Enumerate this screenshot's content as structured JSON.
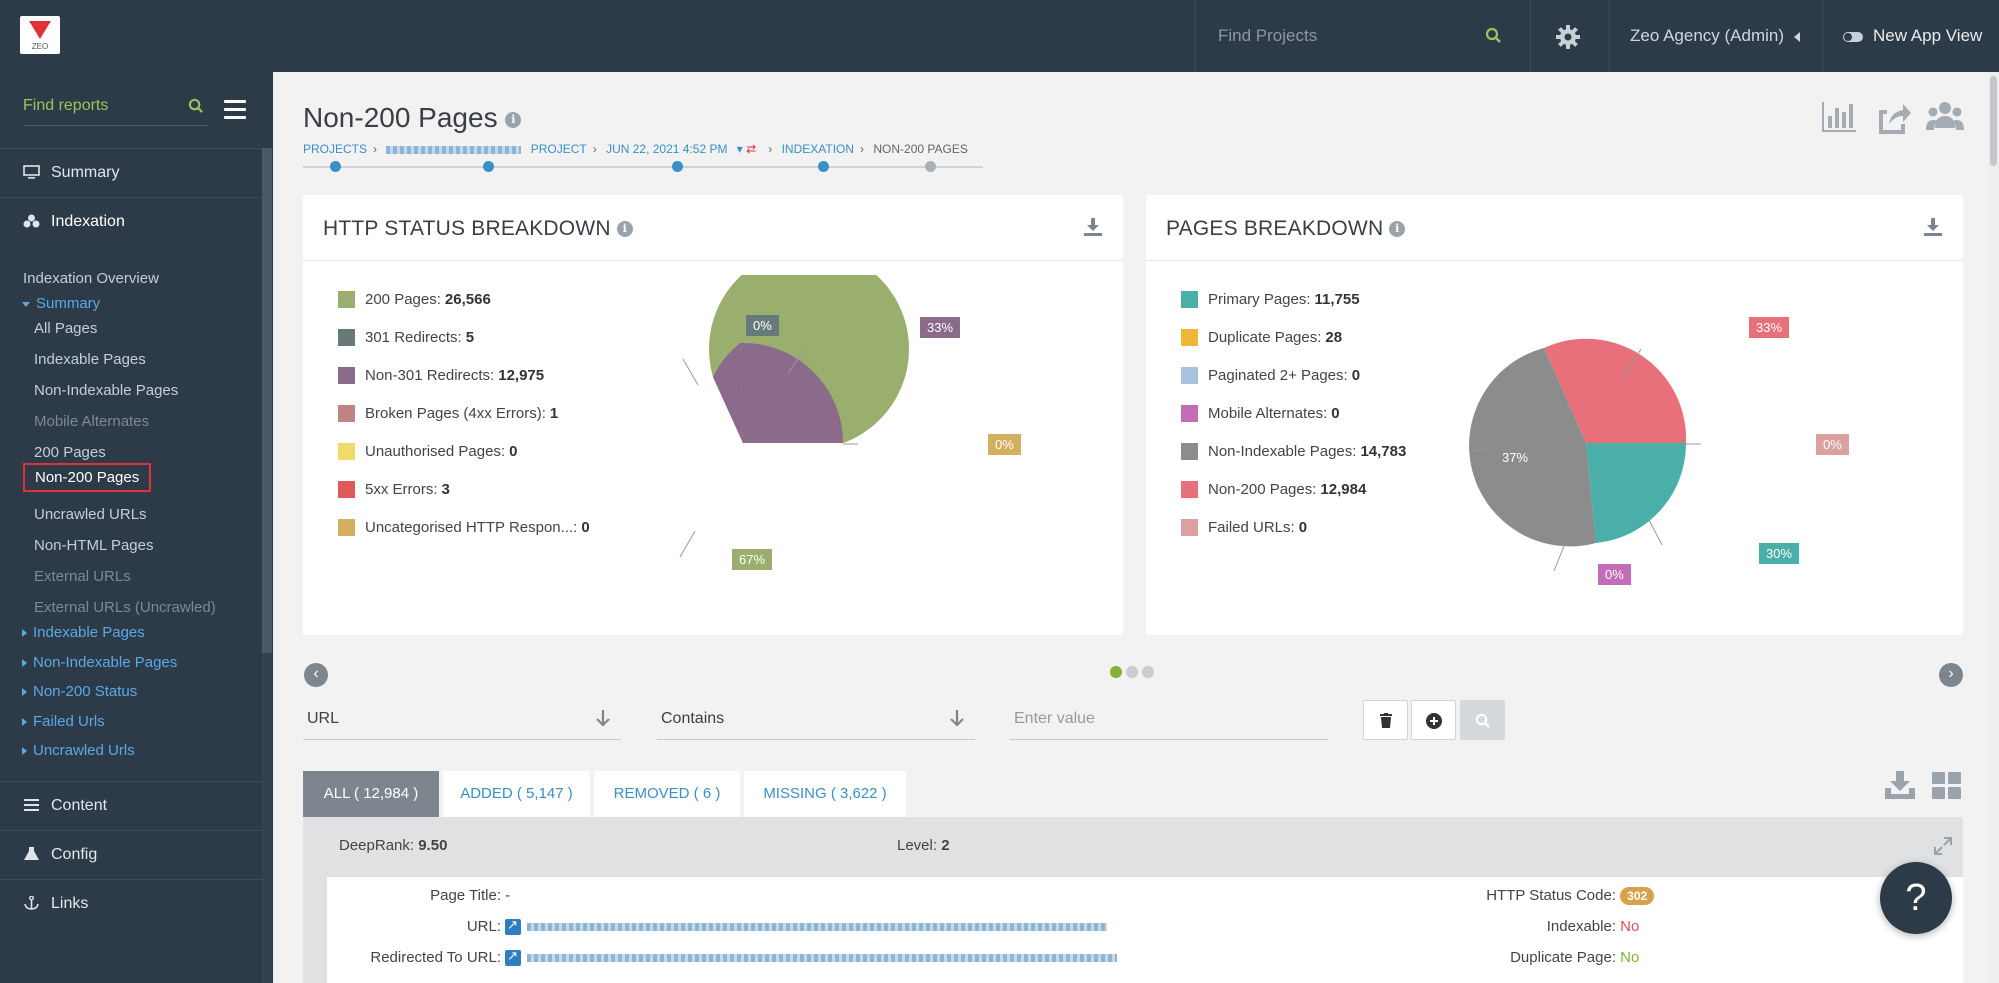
{
  "app": {
    "logo_text": "ZEO"
  },
  "topbar": {
    "search_placeholder": "Find Projects",
    "account_label": "Zeo Agency (Admin)",
    "new_app_view_label": "New App View"
  },
  "sidebar": {
    "search_placeholder": "Find reports",
    "sections": {
      "summary": "Summary",
      "indexation": "Indexation",
      "content": "Content",
      "config": "Config",
      "links": "Links"
    },
    "indexation_overview": "Indexation Overview",
    "summary_group": "Summary",
    "summary_items": [
      "All Pages",
      "Indexable Pages",
      "Non-Indexable Pages",
      "Mobile Alternates",
      "200 Pages",
      "Non-200 Pages",
      "Uncrawled URLs",
      "Non-HTML Pages",
      "External URLs",
      "External URLs (Uncrawled)"
    ],
    "groups": [
      "Indexable Pages",
      "Non-Indexable Pages",
      "Non-200 Status",
      "Failed Urls",
      "Uncrawled Urls"
    ]
  },
  "page": {
    "title": "Non-200 Pages",
    "breadcrumb": {
      "projects": "PROJECTS",
      "project": "PROJECT",
      "date": "JUN 22, 2021 4:52 PM",
      "indexation": "INDEXATION",
      "current": "NON-200 PAGES"
    }
  },
  "http_status": {
    "title": "HTTP STATUS BREAKDOWN",
    "legend": [
      {
        "label": "200 Pages:",
        "value": "26,566",
        "color": "#9aae6e"
      },
      {
        "label": "301 Redirects:",
        "value": "5",
        "color": "#667a7a"
      },
      {
        "label": "Non-301 Redirects:",
        "value": "12,975",
        "color": "#8b6a8c"
      },
      {
        "label": "Broken Pages (4xx Errors):",
        "value": "1",
        "color": "#bf8585"
      },
      {
        "label": "Unauthorised Pages:",
        "value": "0",
        "color": "#f0da6a"
      },
      {
        "label": "5xx Errors:",
        "value": "3",
        "color": "#e05a5a"
      },
      {
        "label": "Uncategorised HTTP Respon...:",
        "value": "0",
        "color": "#d3b060"
      }
    ],
    "pie_labels": {
      "p200": "67%",
      "p301": "0%",
      "pnon301": "33%",
      "pother": "0%"
    }
  },
  "pages_breakdown": {
    "title": "PAGES BREAKDOWN",
    "legend": [
      {
        "label": "Primary Pages:",
        "value": "11,755",
        "color": "#4aafa8"
      },
      {
        "label": "Duplicate Pages:",
        "value": "28",
        "color": "#f0b63a"
      },
      {
        "label": "Paginated 2+ Pages:",
        "value": "0",
        "color": "#a9c2e0"
      },
      {
        "label": "Mobile Alternates:",
        "value": "0",
        "color": "#c36cb8"
      },
      {
        "label": "Non-Indexable Pages:",
        "value": "14,783",
        "color": "#8c8c8c"
      },
      {
        "label": "Non-200 Pages:",
        "value": "12,984",
        "color": "#e8707a"
      },
      {
        "label": "Failed URLs:",
        "value": "0",
        "color": "#dba0a0"
      }
    ],
    "pie_labels": {
      "pnon200": "33%",
      "pfailed": "0%",
      "pprimary": "30%",
      "pmobile": "0%",
      "pnonindex": "37%"
    }
  },
  "filter": {
    "field": "URL",
    "operator": "Contains",
    "value_placeholder": "Enter value"
  },
  "tabs": [
    {
      "label": "ALL ( 12,984 )"
    },
    {
      "label": "ADDED ( 5,147 )"
    },
    {
      "label": "REMOVED ( 6 )"
    },
    {
      "label": "MISSING ( 3,622 )"
    }
  ],
  "record": {
    "deeprank_label": "DeepRank:",
    "deeprank_value": "9.50",
    "level_label": "Level:",
    "level_value": "2",
    "page_title_label": "Page Title:",
    "page_title_value": "-",
    "url_label": "URL:",
    "redirected_label": "Redirected To URL:",
    "status_label": "HTTP Status Code:",
    "status_value": "302",
    "indexable_label": "Indexable:",
    "indexable_value": "No",
    "duplicate_label": "Duplicate Page:",
    "duplicate_value": "No"
  },
  "help_label": "?"
}
